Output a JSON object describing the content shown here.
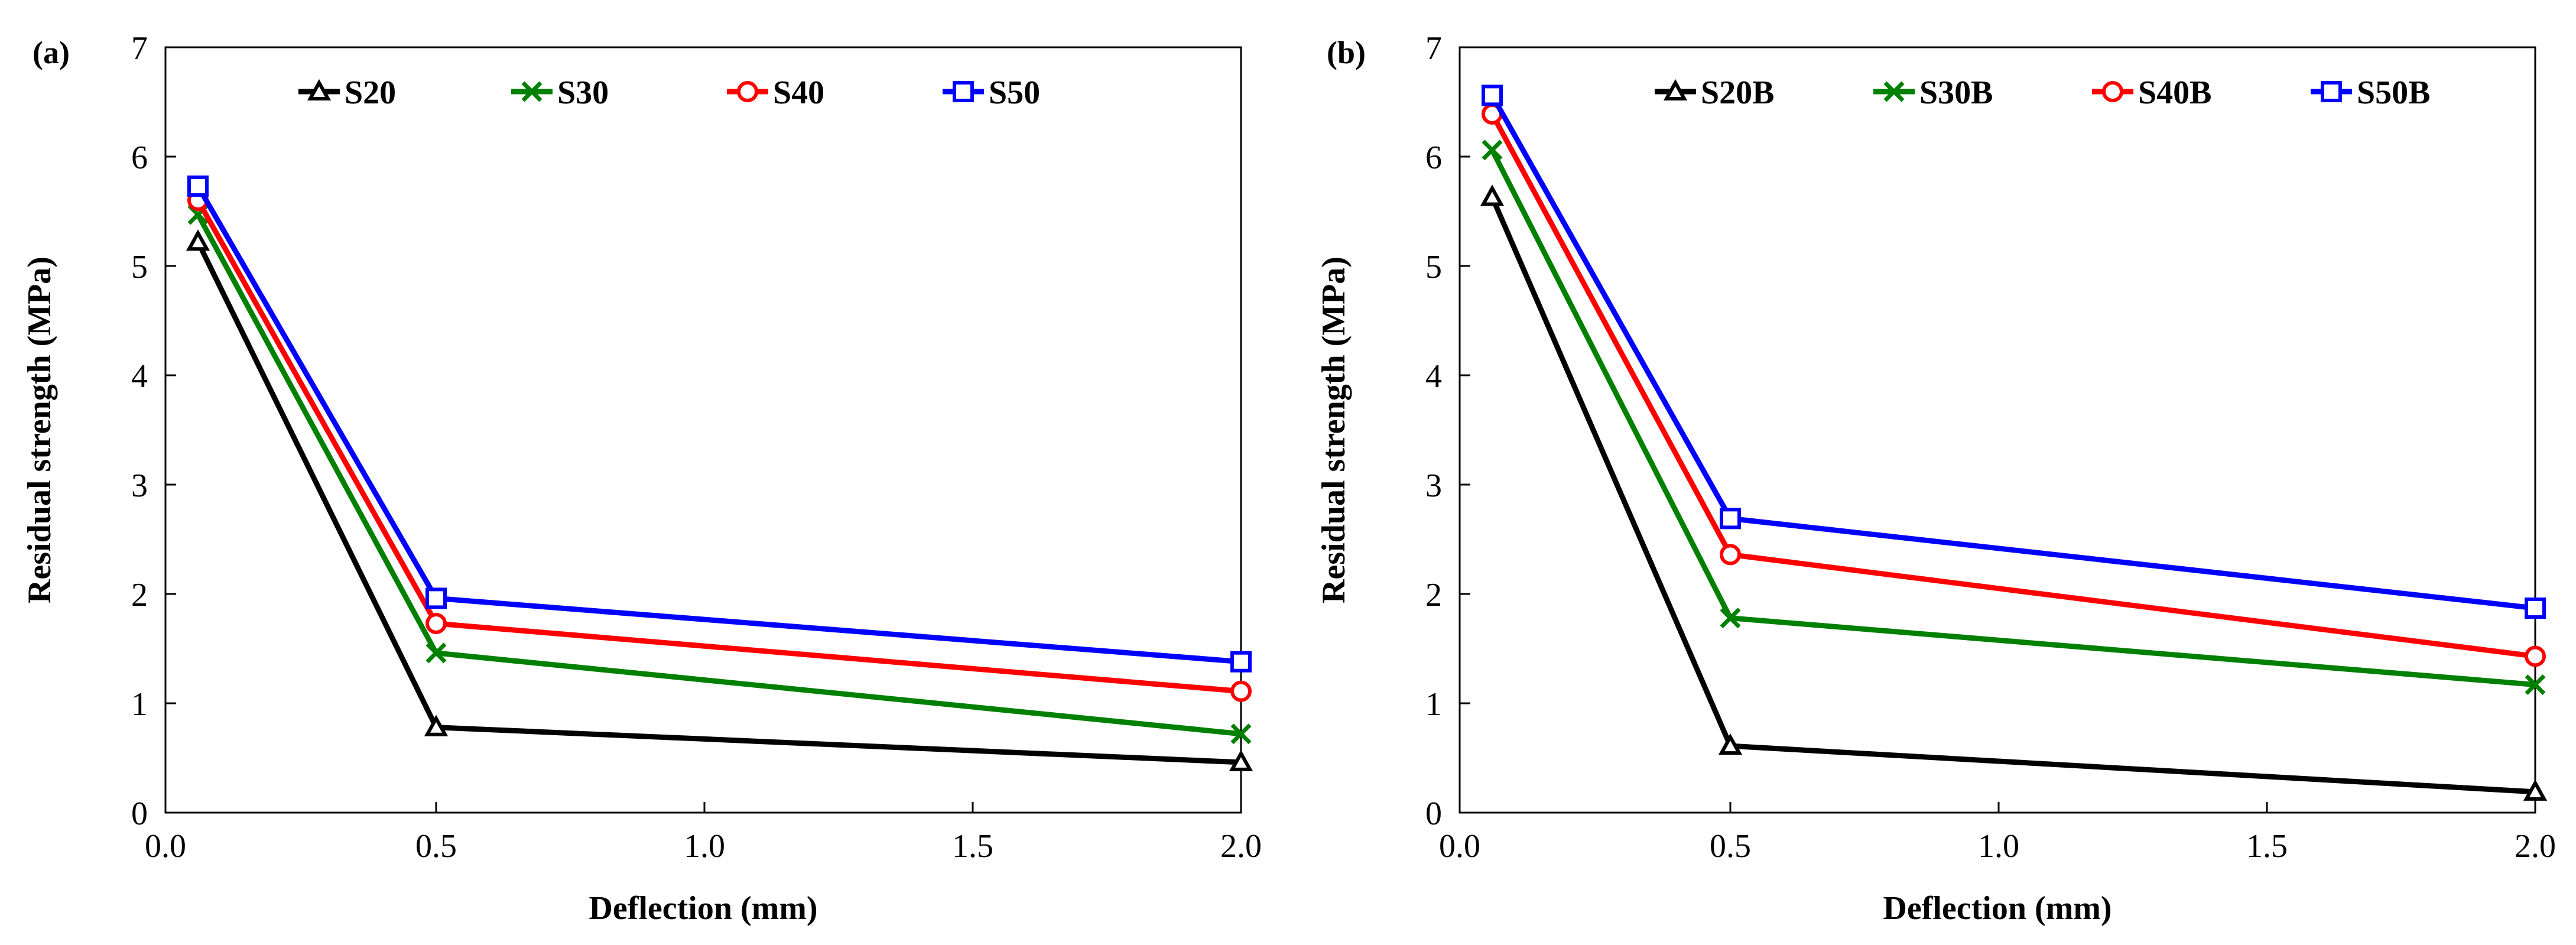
{
  "chart_data": [
    {
      "type": "line",
      "panel_label": "(a)",
      "xlabel": "Deflection (mm)",
      "ylabel": "Residual strength (MPa)",
      "xlim": [
        0,
        2
      ],
      "ylim": [
        0,
        7
      ],
      "x_ticks": [
        "0.0",
        "0.5",
        "1.0",
        "1.5",
        "2.0"
      ],
      "y_ticks": [
        "0",
        "1",
        "2",
        "3",
        "4",
        "5",
        "6",
        "7"
      ],
      "x_scale": "piecewise: 0.05 near 0, 0.5 at 0.5 tick, 2.0 at 2.0 tick",
      "x": [
        0.05,
        0.5,
        2.0
      ],
      "legend_position": "top, horizontal",
      "grid": false,
      "series": [
        {
          "name": "S20",
          "marker": "triangle",
          "color": "#000000",
          "values": [
            5.22,
            0.78,
            0.46
          ]
        },
        {
          "name": "S30",
          "marker": "x",
          "color": "#008000",
          "values": [
            5.47,
            1.46,
            0.72
          ]
        },
        {
          "name": "S40",
          "marker": "circle",
          "color": "#ff0000",
          "values": [
            5.6,
            1.73,
            1.11
          ]
        },
        {
          "name": "S50",
          "marker": "square",
          "color": "#0000ff",
          "values": [
            5.73,
            1.96,
            1.38
          ]
        }
      ]
    },
    {
      "type": "line",
      "panel_label": "(b)",
      "xlabel": "Deflection (mm)",
      "ylabel": "Residual strength (MPa)",
      "xlim": [
        0,
        2
      ],
      "ylim": [
        0,
        7
      ],
      "x_ticks": [
        "0.0",
        "0.5",
        "1.0",
        "1.5",
        "2.0"
      ],
      "y_ticks": [
        "0",
        "1",
        "2",
        "3",
        "4",
        "5",
        "6",
        "7"
      ],
      "x_scale": "piecewise: 0.05 near 0, 0.5 at 0.5 tick, 2.0 at 2.0 tick",
      "x": [
        0.05,
        0.5,
        2.0
      ],
      "legend_position": "top, horizontal",
      "grid": false,
      "series": [
        {
          "name": "S20B",
          "marker": "triangle",
          "color": "#000000",
          "values": [
            5.63,
            0.61,
            0.19
          ]
        },
        {
          "name": "S30B",
          "marker": "x",
          "color": "#008000",
          "values": [
            6.06,
            1.78,
            1.17
          ]
        },
        {
          "name": "S40B",
          "marker": "circle",
          "color": "#ff0000",
          "values": [
            6.39,
            2.36,
            1.43
          ]
        },
        {
          "name": "S50B",
          "marker": "square",
          "color": "#0000ff",
          "values": [
            6.56,
            2.69,
            1.87
          ]
        }
      ]
    }
  ]
}
